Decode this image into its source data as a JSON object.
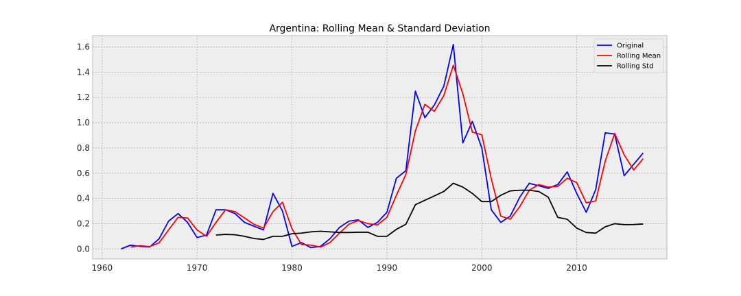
{
  "chart_data": {
    "type": "line",
    "title": "Argentina: Rolling Mean & Standard Deviation",
    "xlabel": "",
    "ylabel": "",
    "xlim": [
      1959,
      2019.5
    ],
    "ylim": [
      -0.08,
      1.69
    ],
    "xticks": [
      1960,
      1970,
      1980,
      1990,
      2000,
      2010
    ],
    "yticks": [
      0.0,
      0.2,
      0.4,
      0.6,
      0.8,
      1.0,
      1.2,
      1.4,
      1.6
    ],
    "grid": true,
    "legend_position": "top-right",
    "series": [
      {
        "name": "Original",
        "color": "#0000ff",
        "x": [
          1962,
          1963,
          1964,
          1965,
          1966,
          1967,
          1968,
          1969,
          1970,
          1971,
          1972,
          1973,
          1974,
          1975,
          1976,
          1977,
          1978,
          1979,
          1980,
          1981,
          1982,
          1983,
          1984,
          1985,
          1986,
          1987,
          1988,
          1989,
          1990,
          1991,
          1992,
          1993,
          1994,
          1995,
          1996,
          1997,
          1998,
          1999,
          2000,
          2001,
          2002,
          2003,
          2004,
          2005,
          2006,
          2007,
          2008,
          2009,
          2010,
          2011,
          2012,
          2013,
          2014,
          2015,
          2016,
          2017
        ],
        "y": [
          0.0,
          0.03,
          0.02,
          0.015,
          0.08,
          0.22,
          0.28,
          0.21,
          0.09,
          0.11,
          0.31,
          0.31,
          0.28,
          0.21,
          0.18,
          0.15,
          0.44,
          0.3,
          0.02,
          0.05,
          0.01,
          0.02,
          0.08,
          0.17,
          0.22,
          0.23,
          0.17,
          0.21,
          0.29,
          0.56,
          0.62,
          1.25,
          1.04,
          1.14,
          1.29,
          1.62,
          0.84,
          1.01,
          0.8,
          0.31,
          0.21,
          0.26,
          0.41,
          0.52,
          0.5,
          0.48,
          0.51,
          0.61,
          0.44,
          0.29,
          0.47,
          0.92,
          0.91,
          0.58,
          0.67,
          0.76
        ]
      },
      {
        "name": "Rolling Mean",
        "color": "#ff0000",
        "x": [
          1963,
          1964,
          1965,
          1966,
          1967,
          1968,
          1969,
          1970,
          1971,
          1972,
          1973,
          1974,
          1975,
          1976,
          1977,
          1978,
          1979,
          1980,
          1981,
          1982,
          1983,
          1984,
          1985,
          1986,
          1987,
          1988,
          1989,
          1990,
          1991,
          1992,
          1993,
          1994,
          1995,
          1996,
          1997,
          1998,
          1999,
          2000,
          2001,
          2002,
          2003,
          2004,
          2005,
          2006,
          2007,
          2008,
          2009,
          2010,
          2011,
          2012,
          2013,
          2014,
          2015,
          2016,
          2017
        ],
        "y": [
          0.015,
          0.025,
          0.018,
          0.048,
          0.15,
          0.25,
          0.245,
          0.15,
          0.1,
          0.21,
          0.31,
          0.295,
          0.245,
          0.195,
          0.165,
          0.295,
          0.37,
          0.16,
          0.035,
          0.03,
          0.015,
          0.05,
          0.125,
          0.195,
          0.225,
          0.2,
          0.19,
          0.25,
          0.425,
          0.59,
          0.935,
          1.145,
          1.09,
          1.215,
          1.455,
          1.23,
          0.925,
          0.905,
          0.555,
          0.26,
          0.235,
          0.335,
          0.465,
          0.51,
          0.49,
          0.495,
          0.56,
          0.525,
          0.365,
          0.38,
          0.695,
          0.915,
          0.745,
          0.625,
          0.715
        ]
      },
      {
        "name": "Rolling Std",
        "color": "#000000",
        "x": [
          1972,
          1973,
          1974,
          1975,
          1976,
          1977,
          1978,
          1979,
          1980,
          1981,
          1982,
          1983,
          1984,
          1985,
          1986,
          1987,
          1988,
          1989,
          1990,
          1991,
          1992,
          1993,
          1994,
          1995,
          1996,
          1997,
          1998,
          1999,
          2000,
          2001,
          2002,
          2003,
          2004,
          2005,
          2006,
          2007,
          2008,
          2009,
          2010,
          2011,
          2012,
          2013,
          2014,
          2015,
          2016,
          2017
        ],
        "y": [
          0.11,
          0.115,
          0.112,
          0.1,
          0.082,
          0.075,
          0.1,
          0.1,
          0.12,
          0.125,
          0.135,
          0.14,
          0.135,
          0.13,
          0.13,
          0.132,
          0.132,
          0.1,
          0.1,
          0.155,
          0.195,
          0.35,
          0.385,
          0.42,
          0.455,
          0.52,
          0.49,
          0.44,
          0.375,
          0.375,
          0.425,
          0.46,
          0.465,
          0.465,
          0.455,
          0.41,
          0.25,
          0.235,
          0.165,
          0.13,
          0.125,
          0.175,
          0.2,
          0.192,
          0.193,
          0.198
        ]
      }
    ]
  }
}
